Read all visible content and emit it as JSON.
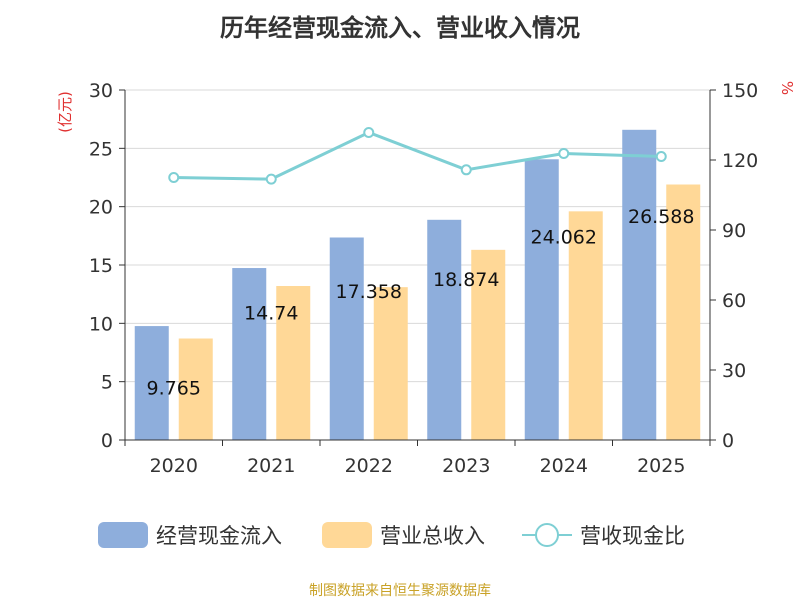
{
  "chart_data": {
    "type": "bar",
    "title": "历年经营现金流入、营业收入情况",
    "categories": [
      "2020",
      "2021",
      "2022",
      "2023",
      "2024",
      "2025"
    ],
    "series": [
      {
        "name": "经营现金流入",
        "type": "bar",
        "axis": "left",
        "color": "#8eaedc",
        "values": [
          9.765,
          14.74,
          17.358,
          18.874,
          24.062,
          26.588
        ],
        "labels": [
          "9.765",
          "14.74",
          "17.358",
          "18.874",
          "24.062",
          "26.588"
        ]
      },
      {
        "name": "营业总收入",
        "type": "bar",
        "axis": "left",
        "color": "#ffd897",
        "values": [
          8.7,
          13.2,
          13.1,
          16.3,
          19.6,
          21.9
        ]
      },
      {
        "name": "营收现金比",
        "type": "line",
        "axis": "right",
        "color": "#7ecfd4",
        "values": [
          112.5,
          111.8,
          131.8,
          115.8,
          122.8,
          121.5
        ]
      }
    ],
    "y_left": {
      "label": "(亿元)",
      "min": 0,
      "max": 30,
      "ticks": [
        0,
        5,
        10,
        15,
        20,
        25,
        30
      ]
    },
    "y_right": {
      "label": "%",
      "min": 0,
      "max": 150,
      "ticks": [
        0,
        30,
        60,
        90,
        120,
        150
      ]
    },
    "legend": "bottom",
    "grid": true,
    "source": "制图数据来自恒生聚源数据库"
  }
}
